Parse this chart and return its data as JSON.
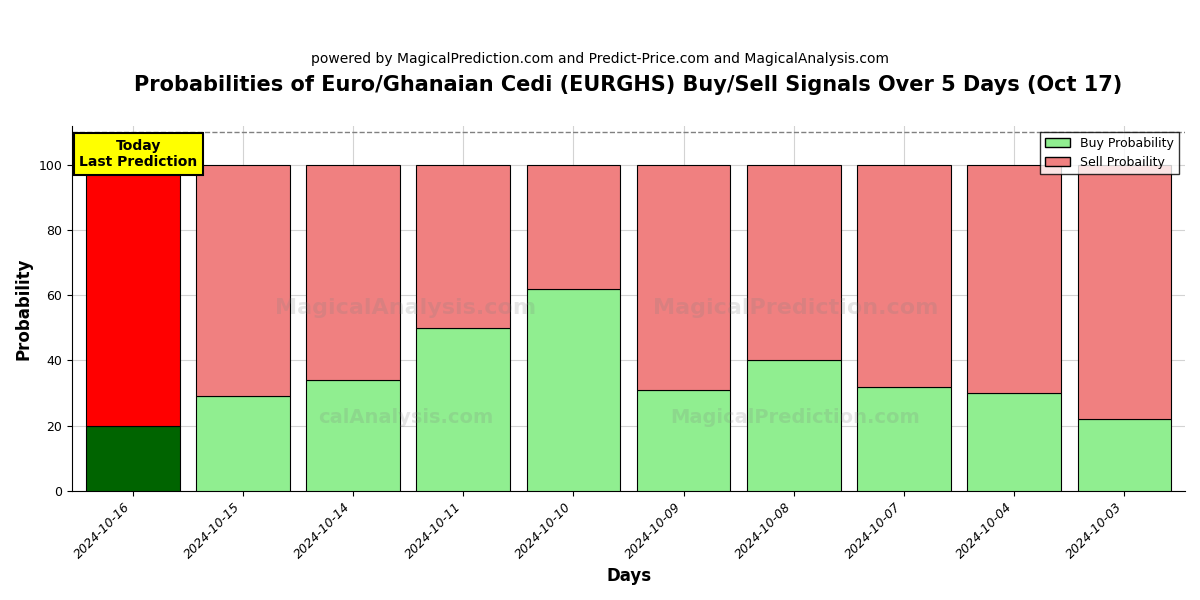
{
  "title": "Probabilities of Euro/Ghanaian Cedi (EURGHS) Buy/Sell Signals Over 5 Days (Oct 17)",
  "subtitle": "powered by MagicalPrediction.com and Predict-Price.com and MagicalAnalysis.com",
  "xlabel": "Days",
  "ylabel": "Probability",
  "categories": [
    "2024-10-16",
    "2024-10-15",
    "2024-10-14",
    "2024-10-11",
    "2024-10-10",
    "2024-10-09",
    "2024-10-08",
    "2024-10-07",
    "2024-10-04",
    "2024-10-03"
  ],
  "buy_values": [
    20,
    29,
    34,
    50,
    62,
    31,
    40,
    32,
    30,
    22
  ],
  "sell_values": [
    80,
    71,
    66,
    50,
    38,
    69,
    60,
    68,
    70,
    78
  ],
  "today_buy_color": "#006400",
  "today_sell_color": "#ff0000",
  "buy_color": "#90EE90",
  "sell_color": "#F08080",
  "today_annotation": "Today\nLast Prediction",
  "annotation_bg": "#ffff00",
  "legend_buy_label": "Buy Probability",
  "legend_sell_label": "Sell Probaility",
  "ylim": [
    0,
    112
  ],
  "dashed_line_y": 110,
  "bar_width": 0.85,
  "title_fontsize": 15,
  "subtitle_fontsize": 10,
  "axis_label_fontsize": 12,
  "tick_fontsize": 9
}
